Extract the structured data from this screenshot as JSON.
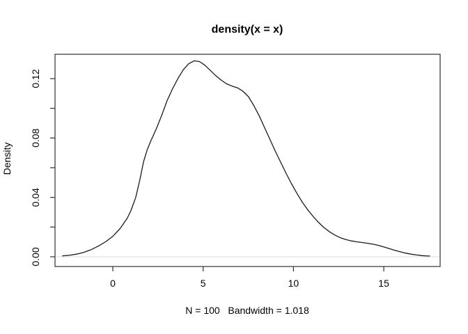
{
  "figure": {
    "title": "density(x = x)",
    "xlabel": "N = 100   Bandwidth = 1.018",
    "ylabel": "Density"
  },
  "chart_data": {
    "type": "line",
    "title": "density(x = x)",
    "xlabel": "N = 100   Bandwidth = 1.018",
    "ylabel": "Density",
    "n": 100,
    "bandwidth": 1.018,
    "grid": false,
    "legend": false,
    "x_axis": {
      "range": [
        -3.2,
        18.12
      ],
      "ticks": [
        {
          "v": 0,
          "label": "0"
        },
        {
          "v": 5,
          "label": "5"
        },
        {
          "v": 10,
          "label": "10"
        },
        {
          "v": 15,
          "label": "15"
        }
      ]
    },
    "y_axis": {
      "range": [
        -0.00656,
        0.1364
      ],
      "ticks": [
        {
          "v": 0.0,
          "label": "0.00"
        },
        {
          "v": 0.02,
          "label": ""
        },
        {
          "v": 0.04,
          "label": "0.04"
        },
        {
          "v": 0.06,
          "label": ""
        },
        {
          "v": 0.08,
          "label": "0.08"
        },
        {
          "v": 0.1,
          "label": ""
        },
        {
          "v": 0.12,
          "label": "0.12"
        }
      ]
    },
    "colors": {
      "curve": "#1a1a1a",
      "box": "#2e2e2e",
      "zero_line": "#e7e7e7"
    },
    "series": [
      {
        "name": "density",
        "points": [
          [
            -2.78,
            0.0006
          ],
          [
            -2.4,
            0.001
          ],
          [
            -2.0,
            0.0018
          ],
          [
            -1.6,
            0.003
          ],
          [
            -1.2,
            0.0048
          ],
          [
            -0.8,
            0.0072
          ],
          [
            -0.4,
            0.0101
          ],
          [
            0.0,
            0.0138
          ],
          [
            0.4,
            0.019
          ],
          [
            0.8,
            0.026
          ],
          [
            1.0,
            0.031
          ],
          [
            1.27,
            0.04
          ],
          [
            1.5,
            0.052
          ],
          [
            1.7,
            0.064
          ],
          [
            1.9,
            0.072
          ],
          [
            2.1,
            0.078
          ],
          [
            2.4,
            0.086
          ],
          [
            2.7,
            0.095
          ],
          [
            3.0,
            0.105
          ],
          [
            3.3,
            0.113
          ],
          [
            3.6,
            0.12
          ],
          [
            3.9,
            0.126
          ],
          [
            4.2,
            0.13
          ],
          [
            4.5,
            0.132
          ],
          [
            4.8,
            0.1315
          ],
          [
            5.1,
            0.129
          ],
          [
            5.4,
            0.1255
          ],
          [
            5.7,
            0.122
          ],
          [
            6.0,
            0.119
          ],
          [
            6.3,
            0.1165
          ],
          [
            6.6,
            0.115
          ],
          [
            6.9,
            0.1138
          ],
          [
            7.2,
            0.1115
          ],
          [
            7.5,
            0.108
          ],
          [
            7.8,
            0.102
          ],
          [
            8.1,
            0.095
          ],
          [
            8.4,
            0.087
          ],
          [
            8.7,
            0.079
          ],
          [
            9.0,
            0.071
          ],
          [
            9.3,
            0.0635
          ],
          [
            9.6,
            0.056
          ],
          [
            9.9,
            0.049
          ],
          [
            10.2,
            0.0425
          ],
          [
            10.5,
            0.0365
          ],
          [
            10.8,
            0.0315
          ],
          [
            11.1,
            0.027
          ],
          [
            11.4,
            0.023
          ],
          [
            11.7,
            0.0195
          ],
          [
            12.0,
            0.0168
          ],
          [
            12.3,
            0.0146
          ],
          [
            12.6,
            0.0128
          ],
          [
            12.9,
            0.0116
          ],
          [
            13.2,
            0.0107
          ],
          [
            13.5,
            0.0101
          ],
          [
            13.8,
            0.0096
          ],
          [
            14.1,
            0.0091
          ],
          [
            14.4,
            0.0085
          ],
          [
            14.7,
            0.0077
          ],
          [
            15.0,
            0.0066
          ],
          [
            15.3,
            0.0055
          ],
          [
            15.6,
            0.0044
          ],
          [
            15.9,
            0.0034
          ],
          [
            16.2,
            0.0025
          ],
          [
            16.5,
            0.0018
          ],
          [
            16.8,
            0.0012
          ],
          [
            17.1,
            0.0008
          ],
          [
            17.4,
            0.0005
          ],
          [
            17.54,
            0.0005
          ]
        ]
      }
    ]
  }
}
